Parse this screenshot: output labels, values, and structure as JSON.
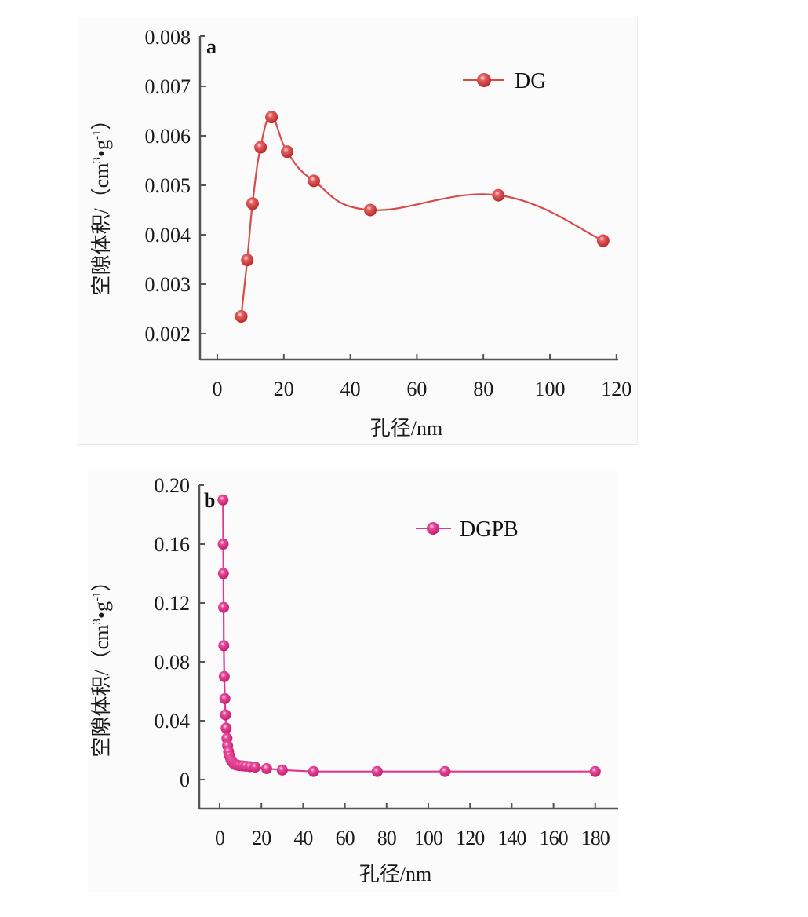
{
  "chart_data": [
    {
      "type": "line",
      "panel_label": "a",
      "xlabel": "孔径/nm",
      "ylabel": "空隙体积/（cm³·g⁻¹）",
      "ylabel_parts": {
        "main": "空隙体积/（cm",
        "sup1": "3",
        "dot": "•",
        "g": "g",
        "sup2": "-1",
        "close": "）"
      },
      "xlim": [
        -5,
        120
      ],
      "ylim": [
        0.0015,
        0.008
      ],
      "xticks": [
        0,
        20,
        40,
        60,
        80,
        100,
        120
      ],
      "xtick_labels": [
        "0",
        "20",
        "40",
        "60",
        "80",
        "100",
        "120"
      ],
      "yticks": [
        0.002,
        0.003,
        0.004,
        0.005,
        0.006,
        0.007,
        0.008
      ],
      "ytick_labels": [
        "0.002",
        "0.003",
        "0.004",
        "0.005",
        "0.006",
        "0.007",
        "0.008"
      ],
      "legend_position": "top-right",
      "grid": false,
      "series": [
        {
          "name": "DG",
          "color": "#d94a4a",
          "x": [
            7.2,
            9.0,
            10.6,
            13.0,
            16.3,
            21.0,
            29.0,
            46.0,
            84.5,
            116.0
          ],
          "y": [
            0.00235,
            0.00349,
            0.00463,
            0.00577,
            0.00638,
            0.00568,
            0.00509,
            0.0045,
            0.0048,
            0.00388
          ]
        }
      ]
    },
    {
      "type": "line",
      "panel_label": "b",
      "xlabel": "孔径/nm",
      "ylabel": "空隙体积/（cm³·g⁻¹）",
      "ylabel_parts": {
        "main": "空隙体积/（cm",
        "sup1": "3",
        "dot": "•",
        "g": "g",
        "sup2": "-1",
        "close": "）"
      },
      "xlim": [
        -5,
        185
      ],
      "ylim": [
        -0.02,
        0.2
      ],
      "xticks": [
        0,
        20,
        40,
        60,
        80,
        100,
        120,
        140,
        160,
        180
      ],
      "xtick_labels": [
        "0",
        "20",
        "40",
        "60",
        "80",
        "100",
        "120",
        "140",
        "160",
        "180"
      ],
      "yticks": [
        0,
        0.04,
        0.08,
        0.12,
        0.16,
        0.2
      ],
      "ytick_labels": [
        "0",
        "0.04",
        "0.08",
        "0.12",
        "0.16",
        "0.20"
      ],
      "legend_position": "top-right",
      "grid": false,
      "series": [
        {
          "name": "DGPB",
          "color": "#e0398c",
          "x": [
            1.6,
            1.7,
            1.8,
            1.9,
            2.0,
            2.2,
            2.5,
            2.8,
            3.1,
            3.5,
            3.8,
            4.3,
            4.8,
            5.4,
            6.0,
            6.7,
            7.5,
            8.5,
            9.6,
            11.0,
            12.5,
            14.5,
            17.0,
            22.5,
            30.0,
            45.0,
            75.5,
            108.0,
            180.0
          ],
          "y": [
            0.19,
            0.16,
            0.14,
            0.117,
            0.091,
            0.07,
            0.055,
            0.044,
            0.035,
            0.028,
            0.023,
            0.019,
            0.016,
            0.0135,
            0.0122,
            0.011,
            0.0102,
            0.0098,
            0.0095,
            0.0093,
            0.0091,
            0.0088,
            0.0085,
            0.0075,
            0.0065,
            0.0055,
            0.0055,
            0.0055,
            0.0055
          ]
        }
      ]
    }
  ]
}
